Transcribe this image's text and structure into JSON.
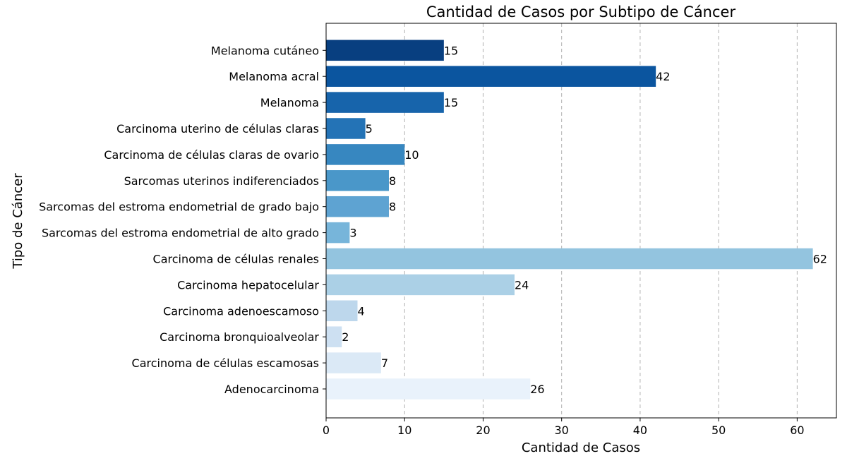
{
  "chart_data": {
    "type": "bar",
    "orientation": "horizontal",
    "title": "Cantidad de Casos por Subtipo de Cáncer",
    "xlabel": "Cantidad de Casos",
    "ylabel": "Tipo de Cáncer",
    "xlim": [
      0,
      65
    ],
    "xticks": [
      0,
      10,
      20,
      30,
      40,
      50,
      60
    ],
    "grid": "x-dashed",
    "categories": [
      "Adenocarcinoma",
      "Carcinoma de células escamosas",
      "Carcinoma bronquioalveolar",
      "Carcinoma adenoescamoso",
      "Carcinoma hepatocelular",
      "Carcinoma de células renales",
      "Sarcomas del estroma endometrial de alto grado",
      "Sarcomas del estroma endometrial de grado bajo",
      "Sarcomas uterinos indiferenciados",
      "Carcinoma de células claras de ovario",
      "Carcinoma uterino de células claras",
      "Melanoma",
      "Melanoma acral",
      "Melanoma cutáneo"
    ],
    "values": [
      26,
      7,
      2,
      4,
      24,
      62,
      3,
      8,
      8,
      10,
      5,
      15,
      42,
      15
    ],
    "colors": [
      "#e9f2fb",
      "#dbe9f6",
      "#cde0f2",
      "#bdd7ec",
      "#abd0e6",
      "#93c4df",
      "#77b5da",
      "#5ea3d2",
      "#4a97c9",
      "#3787c0",
      "#2473b6",
      "#1764ab",
      "#0b559f",
      "#083f80"
    ]
  }
}
